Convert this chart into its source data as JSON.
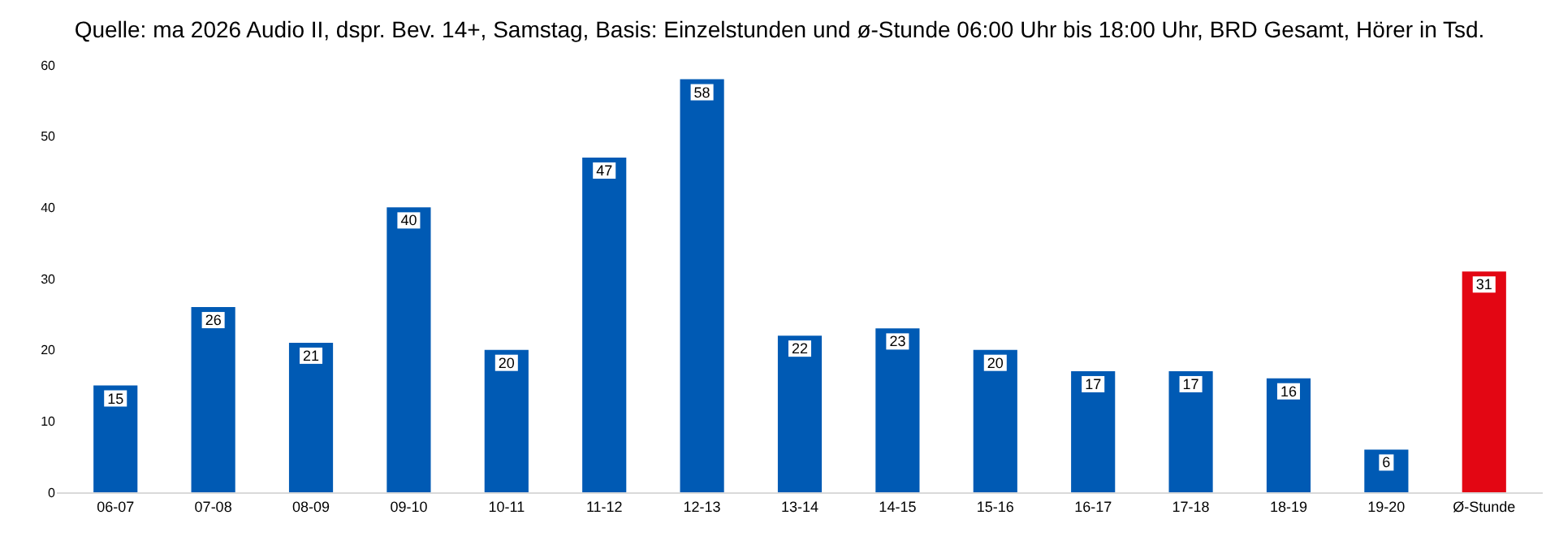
{
  "chart_data": {
    "type": "bar",
    "title": "Quelle: ma 2026 Audio II, dspr. Bev. 14+, Samstag, Basis: Einzelstunden und ø-Stunde 06:00 Uhr bis 18:00 Uhr, BRD Gesamt, Hörer in Tsd.",
    "categories": [
      "06-07",
      "07-08",
      "08-09",
      "09-10",
      "10-11",
      "11-12",
      "12-13",
      "13-14",
      "14-15",
      "15-16",
      "16-17",
      "17-18",
      "18-19",
      "19-20",
      "Ø-Stunde"
    ],
    "values": [
      15,
      26,
      21,
      40,
      20,
      47,
      58,
      22,
      23,
      20,
      17,
      17,
      16,
      6,
      31
    ],
    "colors": [
      "#005ab4",
      "#005ab4",
      "#005ab4",
      "#005ab4",
      "#005ab4",
      "#005ab4",
      "#005ab4",
      "#005ab4",
      "#005ab4",
      "#005ab4",
      "#005ab4",
      "#005ab4",
      "#005ab4",
      "#005ab4",
      "#e30613"
    ],
    "ylim": [
      0,
      60
    ],
    "yticks": [
      0,
      10,
      20,
      30,
      40,
      50,
      60
    ],
    "grid": false,
    "legend": false,
    "data_labels": true
  }
}
